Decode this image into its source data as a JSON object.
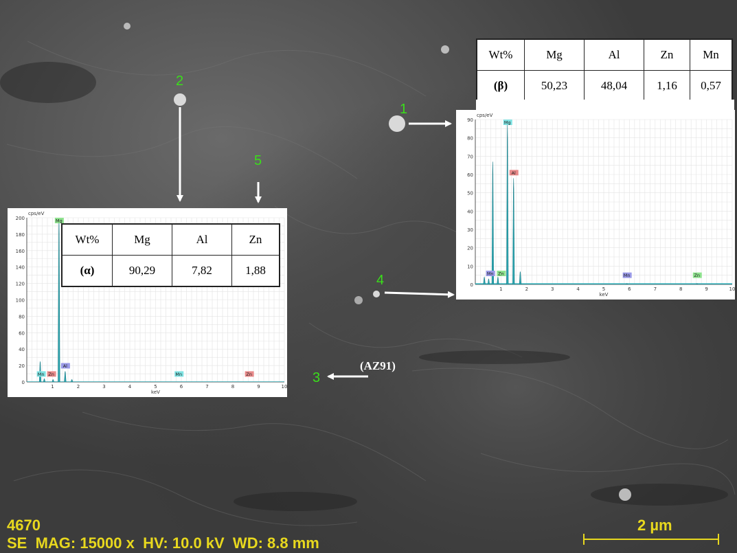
{
  "image_id": "4670",
  "info_bar": "SE  MAG: 15000 x  HV: 10.0 kV  WD: 8.8 mm",
  "scale_bar_label": "2 µm",
  "phase_label": "(AZ91)",
  "point_labels": [
    "1",
    "2",
    "3",
    "4",
    "5"
  ],
  "colors": {
    "point_label": "#3adf1a",
    "info_text": "#e8d81e",
    "spectrum_fill": "#2aa6b0"
  },
  "beta_table": {
    "headers": [
      "Wt%",
      "Mg",
      "Al",
      "Zn",
      "Mn"
    ],
    "row": [
      "(β)",
      "50,23",
      "48,04",
      "1,16",
      "0,57"
    ]
  },
  "alpha_table": {
    "headers": [
      "Wt%",
      "Mg",
      "Al",
      "Zn"
    ],
    "row": [
      "(α)",
      "90,29",
      "7,82",
      "1,88"
    ]
  },
  "chart_data": [
    {
      "type": "line",
      "name_ref": "point-1 EDS spectrum",
      "ylabel": "cps/eV",
      "xlabel": "keV",
      "xlim": [
        0,
        10
      ],
      "ylim": [
        0,
        90
      ],
      "xticks": [
        1,
        2,
        3,
        4,
        5,
        6,
        7,
        8,
        9,
        10
      ],
      "yticks": [
        0,
        10,
        20,
        30,
        40,
        50,
        60,
        70,
        80,
        90
      ],
      "peaks": [
        {
          "x": 0.35,
          "y": 4
        },
        {
          "x": 0.52,
          "y": 3
        },
        {
          "x": 0.68,
          "y": 67
        },
        {
          "x": 0.88,
          "y": 4
        },
        {
          "x": 1.25,
          "y": 88
        },
        {
          "x": 1.49,
          "y": 58
        },
        {
          "x": 1.75,
          "y": 7
        },
        {
          "x": 5.9,
          "y": 0.5
        },
        {
          "x": 8.63,
          "y": 0.5
        }
      ],
      "element_labels": [
        {
          "text": "Mg",
          "x": 1.25,
          "y": 88,
          "color": "#7fe3e3"
        },
        {
          "text": "Al",
          "x": 1.49,
          "y": 58,
          "color": "#e88a8a"
        },
        {
          "text": "Mn",
          "x": 0.58,
          "y": 3,
          "color": "#9a9ae8"
        },
        {
          "text": "Zn",
          "x": 1.0,
          "y": 3,
          "color": "#8fe38f"
        },
        {
          "text": "Mn",
          "x": 5.9,
          "y": 2,
          "color": "#9a9ae8"
        },
        {
          "text": "Zn",
          "x": 8.63,
          "y": 2,
          "color": "#8fe38f"
        }
      ]
    },
    {
      "type": "line",
      "name_ref": "point-2 EDS spectrum",
      "ylabel": "cps/eV",
      "xlabel": "keV",
      "xlim": [
        0,
        10
      ],
      "ylim": [
        0,
        200
      ],
      "xticks": [
        1,
        2,
        3,
        4,
        5,
        6,
        7,
        8,
        9,
        10
      ],
      "yticks": [
        0,
        20,
        40,
        60,
        80,
        100,
        120,
        140,
        160,
        180,
        200
      ],
      "peaks": [
        {
          "x": 0.52,
          "y": 25
        },
        {
          "x": 0.68,
          "y": 4
        },
        {
          "x": 1.02,
          "y": 3
        },
        {
          "x": 1.25,
          "y": 200
        },
        {
          "x": 1.49,
          "y": 13
        },
        {
          "x": 1.75,
          "y": 3
        }
      ],
      "element_labels": [
        {
          "text": "Mg",
          "x": 1.25,
          "y": 200,
          "color": "#8fe38f"
        },
        {
          "text": "Al",
          "x": 1.49,
          "y": 13,
          "color": "#9a9ae8"
        },
        {
          "text": "Mn",
          "x": 0.55,
          "y": 3,
          "color": "#7fe3e3"
        },
        {
          "text": "Zn",
          "x": 0.95,
          "y": 3,
          "color": "#e88a8a"
        },
        {
          "text": "Mn",
          "x": 5.9,
          "y": 3,
          "color": "#7fe3e3"
        },
        {
          "text": "Zn",
          "x": 8.63,
          "y": 3,
          "color": "#e88a8a"
        }
      ]
    }
  ]
}
